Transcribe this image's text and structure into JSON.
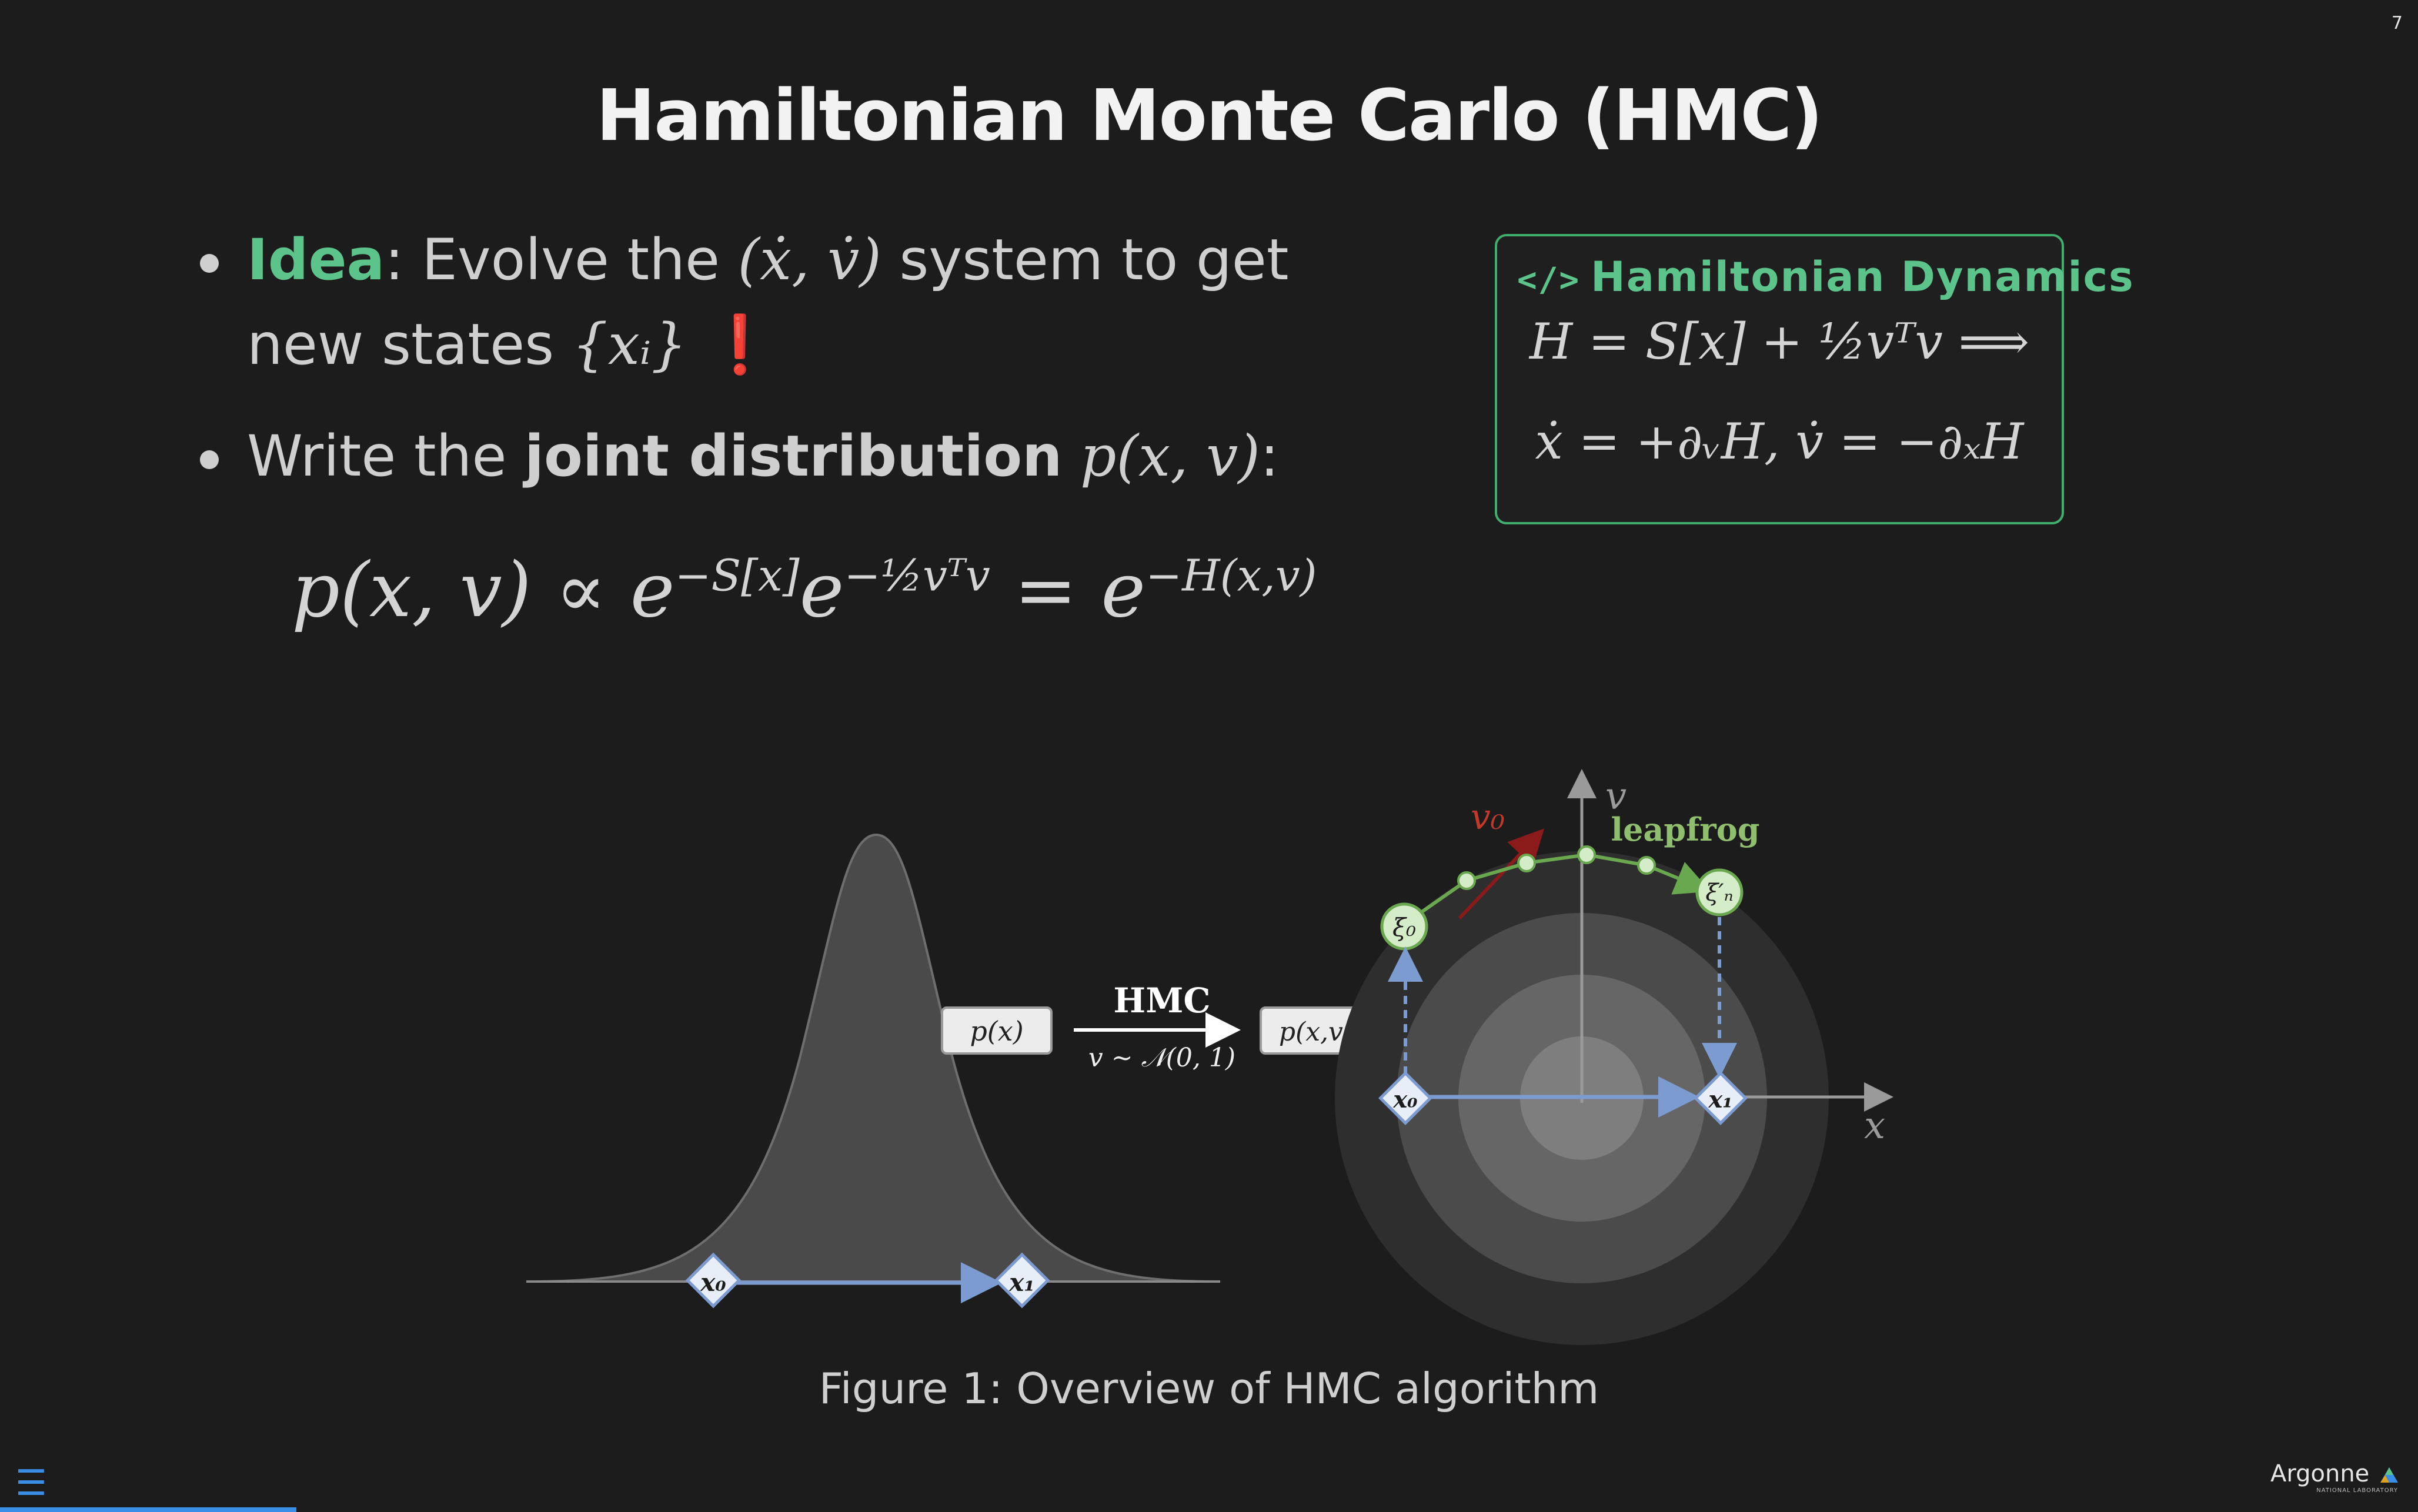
{
  "slide_number": "7",
  "title": "Hamiltonian Monte Carlo (HMC)",
  "bullets": {
    "idea_label": "Idea",
    "idea_text_1": ": Evolve the ",
    "idea_math": "(ẋ, v̇)",
    "idea_text_2": " system to get",
    "idea_text_3": "new states ",
    "idea_math_2": "{xᵢ}",
    "idea_mark": "❗",
    "joint_text_1": "Write the ",
    "joint_bold": "joint distribution",
    "joint_math": "p(x, v)",
    "joint_colon": ":"
  },
  "main_equation": {
    "lhs": "p(x, v) ∝ e",
    "exp1": "−S[x]",
    "mid": "e",
    "exp2": "−½vᵀv",
    "eq": " = e",
    "exp3": "−H(x,v)"
  },
  "callout": {
    "icon": "</>",
    "title": "Hamiltonian Dynamics",
    "eq1": "H = S[x] + ½vᵀv ⟹",
    "eq2": "ẋ = +∂ᵥH,  v̇ = −∂ₓH"
  },
  "figure": {
    "px_label": "p(x)",
    "pxv_label": "p(x,v)",
    "arrow_top": "HMC",
    "arrow_bottom": "v ∼ 𝒩(0, 1)",
    "x0": "x₀",
    "x1": "x₁",
    "xi0": "ξ₀",
    "xiN": "ξ′ₙ",
    "v0": "v₀",
    "leapfrog": "leapfrog",
    "axis_v": "v",
    "axis_x": "x"
  },
  "caption": "Figure 1: Overview of HMC algorithm",
  "footer": {
    "menu_icon": "menu-icon",
    "logo_text": "Argonne",
    "logo_sub": "NATIONAL LABORATORY"
  }
}
